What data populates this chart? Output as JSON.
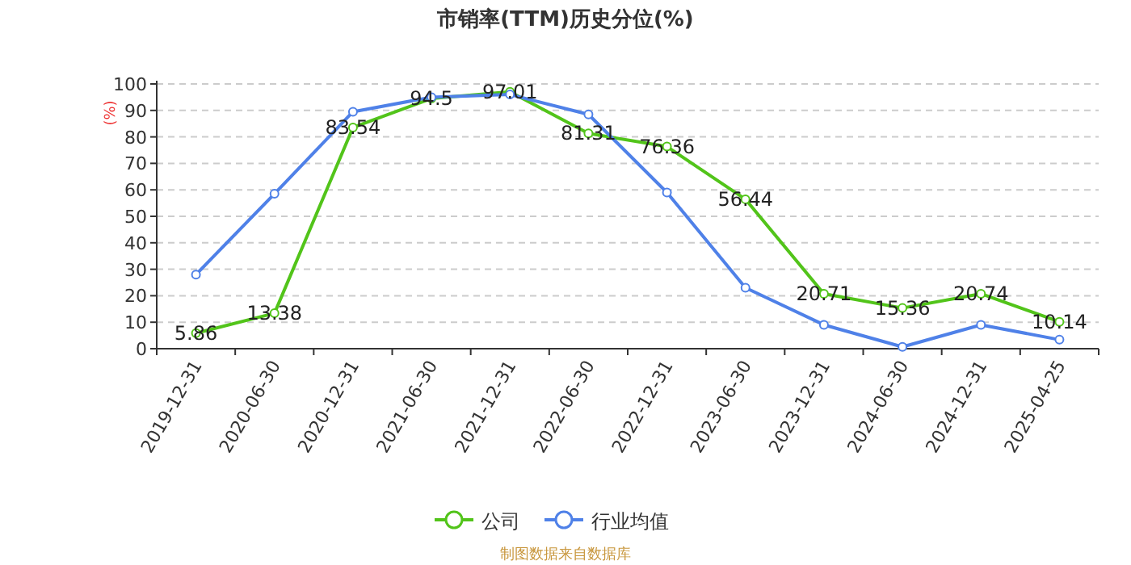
{
  "chart_data": {
    "type": "line",
    "title": "市销率(TTM)历史分位(%)",
    "ylabel": "(%)",
    "categories": [
      "2019-12-31",
      "2020-06-30",
      "2020-12-31",
      "2021-06-30",
      "2021-12-31",
      "2022-06-30",
      "2022-12-31",
      "2023-06-30",
      "2023-12-31",
      "2024-06-30",
      "2024-12-31",
      "2025-04-25"
    ],
    "series": [
      {
        "name": "公司",
        "color": "#52c41a",
        "values": [
          5.86,
          13.38,
          83.54,
          94.5,
          97.01,
          81.31,
          76.36,
          56.44,
          20.71,
          15.36,
          20.74,
          10.14
        ],
        "value_labels": [
          "5.86",
          "13.38",
          "83.54",
          "94.5",
          "97.01",
          "81.31",
          "76.36",
          "56.44",
          "20.71",
          "15.36",
          "20.74",
          "10.14"
        ]
      },
      {
        "name": "行业均值",
        "color": "#4f81e8",
        "values": [
          28,
          58.5,
          89.5,
          95,
          96,
          88.5,
          59,
          23,
          9,
          0.7,
          9,
          3.4
        ]
      }
    ],
    "ylim": [
      0,
      100
    ],
    "yticks": [
      0,
      10,
      20,
      30,
      40,
      50,
      60,
      70,
      80,
      90,
      100
    ],
    "grid": "y",
    "legend": "bottom",
    "marker": "circle",
    "line_style": "solid",
    "annotations": [
      "制图数据来自数据库"
    ]
  }
}
